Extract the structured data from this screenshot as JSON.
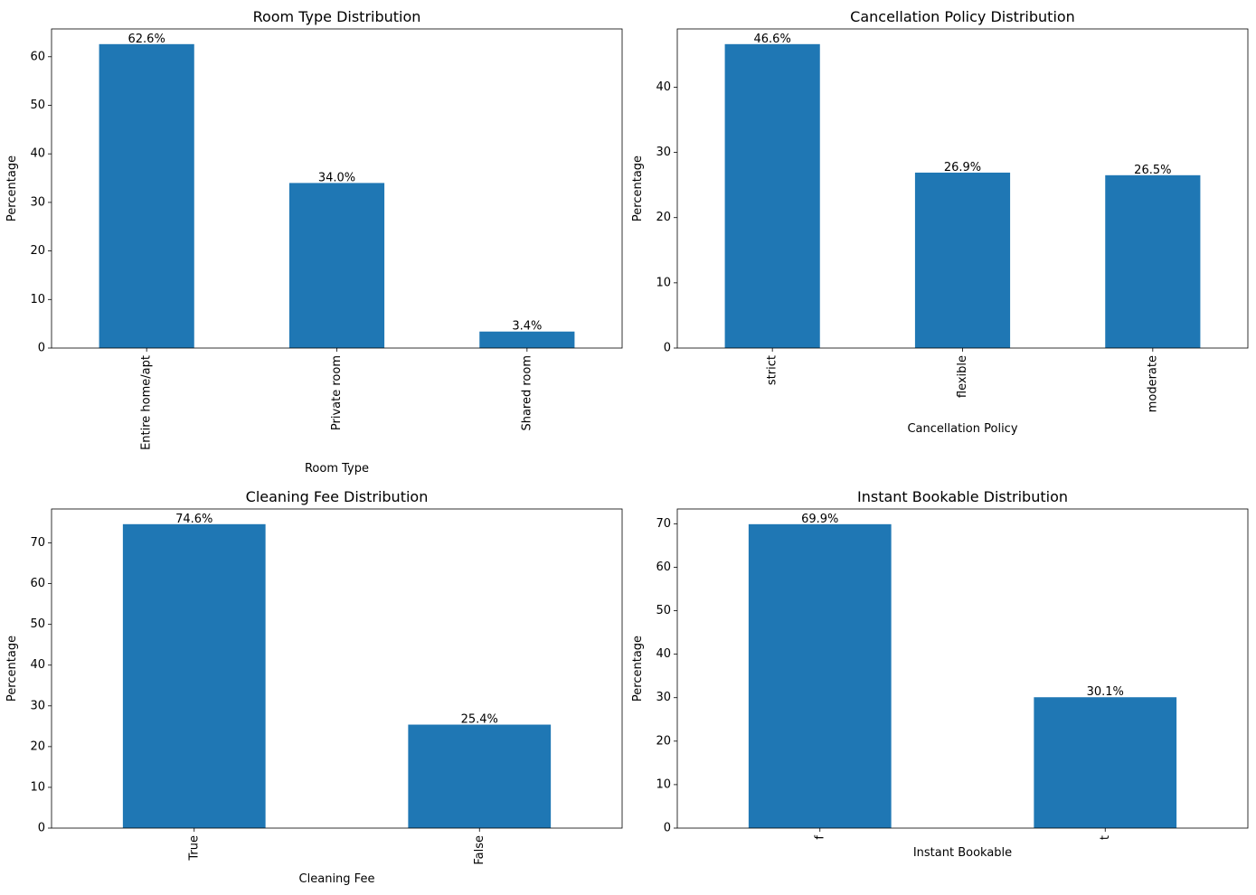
{
  "style": {
    "bar_color": "#1f77b4",
    "axis_color": "#000000",
    "background": "#ffffff"
  },
  "chart_data": [
    {
      "type": "bar",
      "title": "Room Type Distribution",
      "xlabel": "Room Type",
      "ylabel": "Percentage",
      "categories": [
        "Entire home/apt",
        "Private room",
        "Shared room"
      ],
      "values": [
        62.6,
        34.0,
        3.4
      ],
      "data_labels": [
        "62.6%",
        "34.0%",
        "3.4%"
      ],
      "ylim": [
        0,
        65.73
      ],
      "yticks": [
        0,
        10,
        20,
        30,
        40,
        50,
        60
      ],
      "grid": false
    },
    {
      "type": "bar",
      "title": "Cancellation Policy Distribution",
      "xlabel": "Cancellation Policy",
      "ylabel": "Percentage",
      "categories": [
        "strict",
        "flexible",
        "moderate"
      ],
      "values": [
        46.6,
        26.9,
        26.5
      ],
      "data_labels": [
        "46.6%",
        "26.9%",
        "26.5%"
      ],
      "ylim": [
        0,
        48.93
      ],
      "yticks": [
        0,
        10,
        20,
        30,
        40
      ],
      "grid": false
    },
    {
      "type": "bar",
      "title": "Cleaning Fee Distribution",
      "xlabel": "Cleaning Fee",
      "ylabel": "Percentage",
      "categories": [
        "True",
        "False"
      ],
      "values": [
        74.6,
        25.4
      ],
      "data_labels": [
        "74.6%",
        "25.4%"
      ],
      "ylim": [
        0,
        78.33
      ],
      "yticks": [
        0,
        10,
        20,
        30,
        40,
        50,
        60,
        70
      ],
      "grid": false
    },
    {
      "type": "bar",
      "title": "Instant Bookable Distribution",
      "xlabel": "Instant Bookable",
      "ylabel": "Percentage",
      "categories": [
        "f",
        "t"
      ],
      "values": [
        69.9,
        30.1
      ],
      "data_labels": [
        "69.9%",
        "30.1%"
      ],
      "ylim": [
        0,
        73.4
      ],
      "yticks": [
        0,
        10,
        20,
        30,
        40,
        50,
        60,
        70
      ],
      "grid": false
    }
  ]
}
